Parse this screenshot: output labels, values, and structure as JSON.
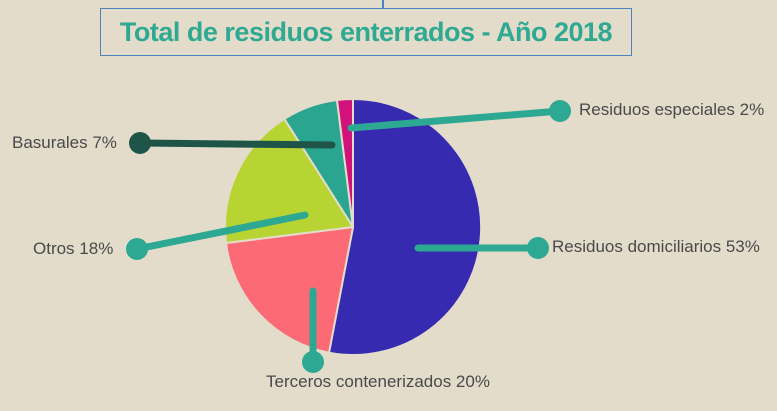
{
  "title": {
    "text": "Total de residuos enterrados - Año 2018"
  },
  "colors": {
    "background": "#e3dccb",
    "title_text": "#2fa992",
    "title_border": "#4d82bc",
    "label_text": "#4a4a4a",
    "connector": "#2ca893",
    "connector_dark": "#1f5549",
    "slice_gap": "#e3dccb"
  },
  "labels": {
    "basurales": "Basurales 7%",
    "otros": "Otros 18%",
    "terceros": "Terceros contenerizados 20%",
    "domiciliarios": "Residuos domiciliarios 53%",
    "especiales": "Residuos especiales 2%"
  },
  "chart_data": {
    "type": "pie",
    "title": "Total de residuos enterrados - Año 2018",
    "unit": "%",
    "direction": "clockwise",
    "start_angle_deg": 0,
    "slices": [
      {
        "label": "Residuos domiciliarios",
        "value": 53,
        "color": "#362ab1"
      },
      {
        "label": "Terceros contenerizados",
        "value": 20,
        "color": "#fb6a75"
      },
      {
        "label": "Otros",
        "value": 18,
        "color": "#b8d433"
      },
      {
        "label": "Basurales",
        "value": 7,
        "color": "#2aa58f"
      },
      {
        "label": "Residuos especiales",
        "value": 2,
        "color": "#d0127a"
      }
    ],
    "legend": "callout-labels-around-pie",
    "layout": {
      "center": [
        353,
        227
      ],
      "radius": 128,
      "slice_gap_width": 2,
      "callouts": [
        {
          "name": "especiales",
          "line": [
            351,
            128,
            560,
            111
          ],
          "dot": [
            560,
            111
          ],
          "color": "#2ca893"
        },
        {
          "name": "domiciliarios",
          "line": [
            418,
            248,
            538,
            248
          ],
          "dot": [
            538,
            248
          ],
          "color": "#2ca893"
        },
        {
          "name": "terceros",
          "line": [
            313,
            291,
            313,
            362
          ],
          "dot": [
            313,
            362
          ],
          "color": "#2ca893"
        },
        {
          "name": "otros",
          "line": [
            305,
            215,
            137,
            249
          ],
          "dot": [
            137,
            249
          ],
          "color": "#2ca893"
        },
        {
          "name": "basurales",
          "line": [
            332,
            145,
            140,
            143
          ],
          "dot": [
            140,
            143
          ],
          "color": "#1f5549"
        }
      ],
      "line_width": 7,
      "dot_radius": 11
    }
  }
}
